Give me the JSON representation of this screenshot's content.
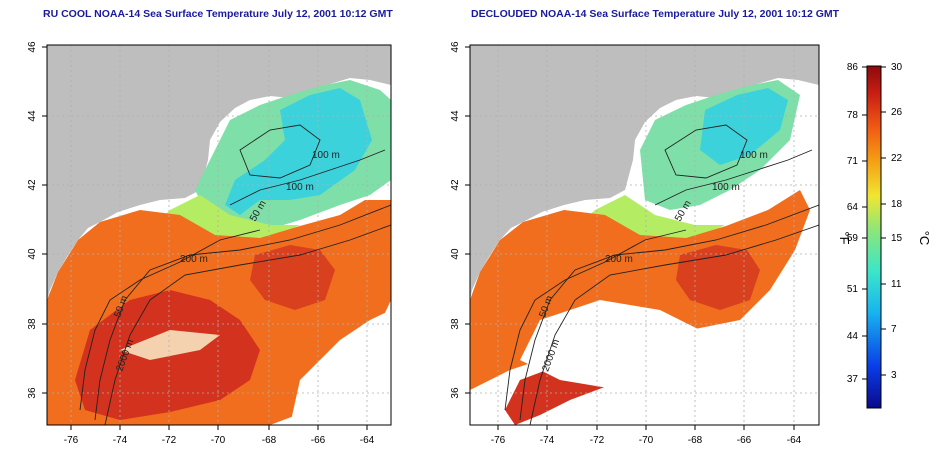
{
  "left_panel": {
    "title": "RU COOL NOAA-14 Sea Surface Temperature July 12, 2001 10:12 GMT",
    "contour_labels": [
      "100 m",
      "100 m",
      "50 m",
      "200 m",
      "50 m",
      "2000 m"
    ]
  },
  "right_panel": {
    "title": "DECLOUDED NOAA-14 Sea Surface Temperature July 12, 2001 10:12 GMT",
    "contour_labels": [
      "100 m",
      "100 m",
      "50 m",
      "200 m",
      "50 m",
      "2000 m"
    ]
  },
  "x_ticks": [
    "-76",
    "-74",
    "-72",
    "-70",
    "-68",
    "-66",
    "-64"
  ],
  "y_ticks": [
    "36",
    "38",
    "40",
    "42",
    "44",
    "46"
  ],
  "colorbar": {
    "left_unit": "°F",
    "right_unit": "°C",
    "f_ticks": [
      "86",
      "78",
      "71",
      "64",
      "59",
      "51",
      "44",
      "37"
    ],
    "c_ticks": [
      "30",
      "26",
      "22",
      "18",
      "15",
      "11",
      "7",
      "3"
    ],
    "colors": [
      "#0a0a8c",
      "#0a3ce6",
      "#18b4f0",
      "#3ce6c8",
      "#8ce67a",
      "#f0e632",
      "#f5a014",
      "#f05a14",
      "#c81e14",
      "#8c0a0a"
    ]
  },
  "colors": {
    "land": "#bebebe",
    "cloud": "#ffffff",
    "title": "#1a1a9c",
    "cold_water": "#3cd2dc",
    "cool_water": "#8ce67a",
    "warm_water": "#f06e1e",
    "hot_water": "#d2321e"
  }
}
